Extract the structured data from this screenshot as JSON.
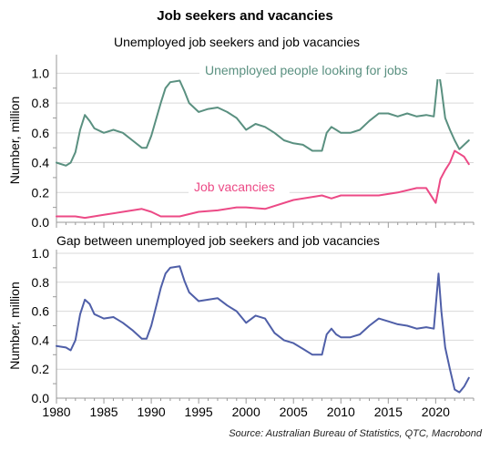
{
  "title": "Job seekers and vacancies",
  "source": "Source: Australian Bureau of Statistics, QTC, Macrobond",
  "colors": {
    "unemployed": "#5a9080",
    "vacancies": "#ec4a86",
    "gap": "#4f5fa8",
    "grid": "#d9d9d9",
    "axis": "#999999"
  },
  "chart_data": [
    {
      "type": "line",
      "title": "Unemployed job seekers and job vacancies",
      "xlabel": "",
      "ylabel": "Number, million",
      "xlim": [
        1980,
        2024
      ],
      "ylim": [
        0,
        1.1
      ],
      "yticks": [
        "0.0",
        "0.2",
        "0.4",
        "0.6",
        "0.8",
        "1.0"
      ],
      "grid": true,
      "series": [
        {
          "name": "Unemployed people looking for jobs",
          "x": [
            1980,
            1981,
            1981.5,
            1982,
            1982.5,
            1983,
            1983.5,
            1984,
            1985,
            1986,
            1987,
            1988,
            1989,
            1989.5,
            1990,
            1991,
            1991.5,
            1992,
            1993,
            1993.5,
            1994,
            1995,
            1996,
            1997,
            1998,
            1999,
            2000,
            2001,
            2002,
            2003,
            2004,
            2005,
            2006,
            2007,
            2008,
            2008.5,
            2009,
            2009.5,
            2010,
            2011,
            2012,
            2013,
            2014,
            2015,
            2016,
            2017,
            2018,
            2019,
            2019.8,
            2020.3,
            2020.6,
            2021,
            2021.5,
            2022,
            2022.5,
            2023,
            2023.5
          ],
          "values": [
            0.4,
            0.38,
            0.4,
            0.47,
            0.62,
            0.72,
            0.68,
            0.63,
            0.6,
            0.62,
            0.6,
            0.55,
            0.5,
            0.5,
            0.58,
            0.8,
            0.9,
            0.94,
            0.95,
            0.88,
            0.8,
            0.74,
            0.76,
            0.77,
            0.74,
            0.7,
            0.62,
            0.66,
            0.64,
            0.6,
            0.55,
            0.53,
            0.52,
            0.48,
            0.48,
            0.6,
            0.64,
            0.62,
            0.6,
            0.6,
            0.62,
            0.68,
            0.73,
            0.73,
            0.71,
            0.73,
            0.71,
            0.72,
            0.71,
            1.02,
            0.9,
            0.7,
            0.62,
            0.55,
            0.49,
            0.52,
            0.55
          ]
        },
        {
          "name": "Job vacancies",
          "x": [
            1980,
            1982,
            1983,
            1985,
            1988,
            1989,
            1990,
            1991,
            1993,
            1995,
            1997,
            1999,
            2000,
            2002,
            2005,
            2008,
            2009,
            2010,
            2012,
            2014,
            2016,
            2018,
            2019,
            2020,
            2020.5,
            2021,
            2021.5,
            2022,
            2022.5,
            2023,
            2023.5
          ],
          "values": [
            0.04,
            0.04,
            0.03,
            0.05,
            0.08,
            0.09,
            0.07,
            0.04,
            0.04,
            0.07,
            0.08,
            0.1,
            0.1,
            0.09,
            0.15,
            0.18,
            0.16,
            0.18,
            0.18,
            0.18,
            0.2,
            0.23,
            0.23,
            0.13,
            0.29,
            0.35,
            0.4,
            0.48,
            0.46,
            0.44,
            0.39
          ]
        }
      ]
    },
    {
      "type": "line",
      "title": "Gap between unemployed job seekers and job vacancies",
      "xlabel": "",
      "ylabel": "Number, million",
      "xlim": [
        1980,
        2024
      ],
      "ylim": [
        0,
        1.0
      ],
      "yticks": [
        "0.0",
        "0.2",
        "0.4",
        "0.6",
        "0.8",
        "1.0"
      ],
      "xticks": [
        "1980",
        "1985",
        "1990",
        "1995",
        "2000",
        "2005",
        "2010",
        "2015",
        "2020"
      ],
      "grid": true,
      "series": [
        {
          "name": "",
          "x": [
            1980,
            1981,
            1981.5,
            1982,
            1982.5,
            1983,
            1983.5,
            1984,
            1985,
            1986,
            1987,
            1988,
            1989,
            1989.5,
            1990,
            1991,
            1991.5,
            1992,
            1993,
            1993.5,
            1994,
            1995,
            1996,
            1997,
            1998,
            1999,
            2000,
            2001,
            2002,
            2003,
            2004,
            2005,
            2006,
            2007,
            2008,
            2008.5,
            2009,
            2009.5,
            2010,
            2011,
            2012,
            2013,
            2014,
            2015,
            2016,
            2017,
            2018,
            2019,
            2019.8,
            2020.3,
            2020.6,
            2021,
            2021.5,
            2022,
            2022.5,
            2023,
            2023.5
          ],
          "values": [
            0.36,
            0.35,
            0.33,
            0.4,
            0.58,
            0.68,
            0.65,
            0.58,
            0.55,
            0.56,
            0.52,
            0.47,
            0.41,
            0.41,
            0.5,
            0.76,
            0.86,
            0.9,
            0.91,
            0.81,
            0.73,
            0.67,
            0.68,
            0.69,
            0.64,
            0.6,
            0.52,
            0.57,
            0.55,
            0.45,
            0.4,
            0.38,
            0.34,
            0.3,
            0.3,
            0.44,
            0.48,
            0.44,
            0.42,
            0.42,
            0.44,
            0.5,
            0.55,
            0.53,
            0.51,
            0.5,
            0.48,
            0.49,
            0.48,
            0.86,
            0.6,
            0.35,
            0.2,
            0.06,
            0.04,
            0.08,
            0.14
          ]
        }
      ]
    }
  ]
}
